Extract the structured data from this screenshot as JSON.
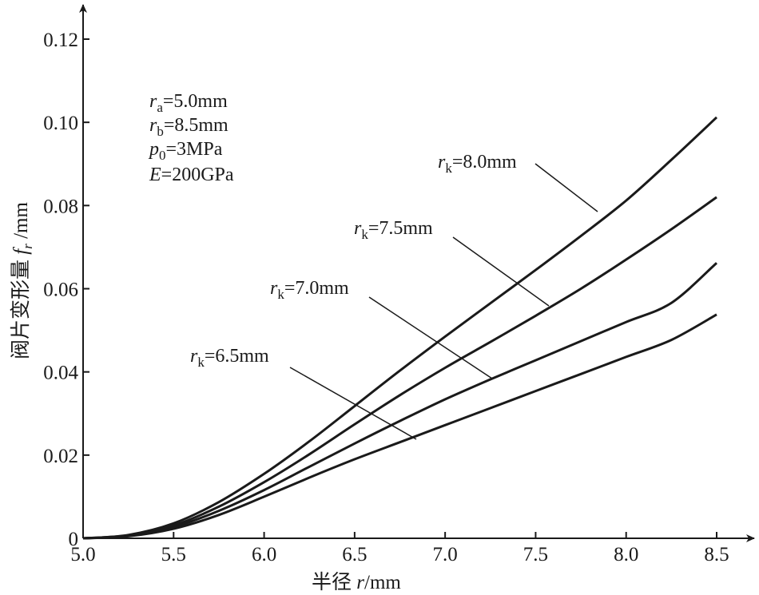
{
  "chart_data": {
    "type": "line",
    "xlabel": {
      "prefix": "半径 ",
      "var": "r",
      "unit": "/mm"
    },
    "ylabel": {
      "prefix": "阀片变形量 ",
      "var": "f",
      "var_sub": "r",
      "unit": " /mm"
    },
    "xlim": [
      5.0,
      8.7
    ],
    "ylim": [
      0,
      0.125
    ],
    "x_ticks": [
      5.0,
      5.5,
      6.0,
      6.5,
      7.0,
      7.5,
      8.0,
      8.5
    ],
    "x_tick_labels": [
      "5.0",
      "5.5",
      "6.0",
      "6.5",
      "7.0",
      "7.5",
      "8.0",
      "8.5"
    ],
    "y_ticks": [
      0,
      0.02,
      0.04,
      0.06,
      0.08,
      0.1,
      0.12
    ],
    "y_tick_labels": [
      "0",
      "0.02",
      "0.04",
      "0.06",
      "0.08",
      "0.10",
      "0.12"
    ],
    "grid": false,
    "parameters": [
      {
        "var": "r",
        "sub": "a",
        "value": "=5.0mm"
      },
      {
        "var": "r",
        "sub": "b",
        "value": "=8.5mm"
      },
      {
        "var": "p",
        "sub": "0",
        "value": "=3MPa"
      },
      {
        "var": "E",
        "sub": "",
        "value": "=200GPa"
      }
    ],
    "series": [
      {
        "name": "rk=6.5mm",
        "label": {
          "var": "r",
          "sub": "k",
          "value": "=6.5mm"
        },
        "x": [
          5.0,
          5.25,
          5.5,
          5.75,
          6.0,
          6.25,
          6.5,
          6.75,
          7.0,
          7.25,
          7.5,
          7.75,
          8.0,
          8.25,
          8.5
        ],
        "y": [
          0,
          0.0005,
          0.0023,
          0.0056,
          0.01,
          0.0146,
          0.019,
          0.0231,
          0.0272,
          0.0313,
          0.0354,
          0.0395,
          0.0436,
          0.0477,
          0.0538
        ]
      },
      {
        "name": "rk=7.0mm",
        "label": {
          "var": "r",
          "sub": "k",
          "value": "=7.0mm"
        },
        "x": [
          5.0,
          5.25,
          5.5,
          5.75,
          6.0,
          6.25,
          6.5,
          6.75,
          7.0,
          7.25,
          7.5,
          7.75,
          8.0,
          8.25,
          8.5
        ],
        "y": [
          0,
          0.0006,
          0.0027,
          0.0066,
          0.0116,
          0.0172,
          0.0228,
          0.0282,
          0.0334,
          0.0382,
          0.0428,
          0.0474,
          0.052,
          0.0566,
          0.0662
        ]
      },
      {
        "name": "rk=7.5mm",
        "label": {
          "var": "r",
          "sub": "k",
          "value": "=7.5mm"
        },
        "x": [
          5.0,
          5.25,
          5.5,
          5.75,
          6.0,
          6.25,
          6.5,
          6.75,
          7.0,
          7.25,
          7.5,
          7.75,
          8.0,
          8.25,
          8.5
        ],
        "y": [
          0,
          0.0007,
          0.0031,
          0.0076,
          0.0135,
          0.0202,
          0.0274,
          0.0344,
          0.041,
          0.0472,
          0.0535,
          0.06,
          0.067,
          0.0743,
          0.082
        ]
      },
      {
        "name": "rk=8.0mm",
        "label": {
          "var": "r",
          "sub": "k",
          "value": "=8.0mm"
        },
        "x": [
          5.0,
          5.25,
          5.5,
          5.75,
          6.0,
          6.25,
          6.5,
          6.75,
          7.0,
          7.25,
          7.5,
          7.75,
          8.0,
          8.25,
          8.5
        ],
        "y": [
          0,
          0.0008,
          0.0036,
          0.0087,
          0.0155,
          0.0233,
          0.0318,
          0.0403,
          0.0485,
          0.0565,
          0.0645,
          0.0727,
          0.0812,
          0.091,
          0.1012
        ]
      }
    ]
  }
}
